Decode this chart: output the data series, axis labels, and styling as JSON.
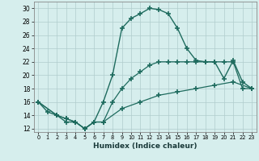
{
  "xlabel": "Humidex (Indice chaleur)",
  "xlim": [
    -0.5,
    23.5
  ],
  "ylim": [
    11.5,
    31
  ],
  "xticks": [
    0,
    1,
    2,
    3,
    4,
    5,
    6,
    7,
    8,
    9,
    10,
    11,
    12,
    13,
    14,
    15,
    16,
    17,
    18,
    19,
    20,
    21,
    22,
    23
  ],
  "yticks": [
    12,
    14,
    16,
    18,
    20,
    22,
    24,
    26,
    28,
    30
  ],
  "bg_color": "#d6eeed",
  "line_color": "#1e6b5e",
  "grid_color": "#b0cccc",
  "line1_x": [
    0,
    1,
    2,
    3,
    4,
    5,
    6,
    7,
    8,
    9,
    10,
    11,
    12,
    13,
    14,
    15,
    16,
    17,
    18,
    19,
    20,
    21,
    22,
    23
  ],
  "line1_y": [
    16,
    14.5,
    14,
    13,
    13,
    12,
    13,
    16,
    20,
    27,
    28.5,
    29.2,
    30,
    29.8,
    29.2,
    27,
    24,
    22.2,
    22,
    22,
    19.5,
    22.2,
    19,
    18
  ],
  "line2_x": [
    0,
    2,
    3,
    4,
    5,
    6,
    7,
    8,
    9,
    10,
    11,
    12,
    13,
    14,
    15,
    16,
    17,
    18,
    19,
    20,
    21,
    22,
    23
  ],
  "line2_y": [
    16,
    14,
    13.5,
    13,
    12,
    13,
    13,
    16,
    18,
    19.5,
    20.5,
    21.5,
    22,
    22,
    22,
    22,
    22,
    22,
    22,
    22,
    22,
    18,
    18
  ],
  "line3_x": [
    0,
    2,
    3,
    4,
    5,
    6,
    7,
    9,
    11,
    13,
    15,
    17,
    19,
    21,
    23
  ],
  "line3_y": [
    16,
    14,
    13.5,
    13,
    12,
    13,
    13,
    15,
    16,
    17,
    17.5,
    18,
    18.5,
    19,
    18
  ]
}
